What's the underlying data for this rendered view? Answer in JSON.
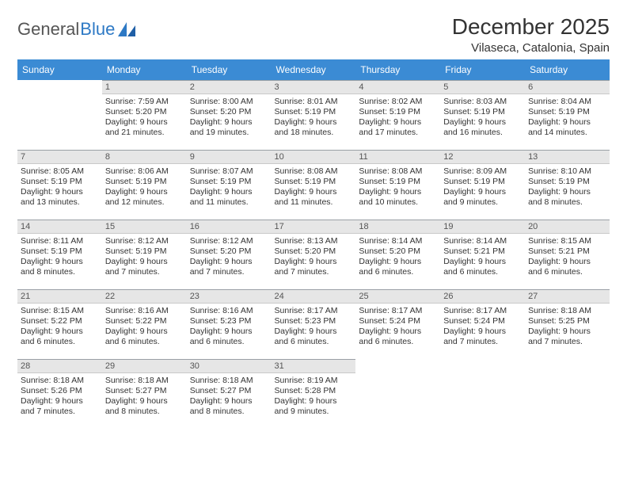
{
  "logo": {
    "text1": "General",
    "text2": "Blue"
  },
  "title": "December 2025",
  "location": "Vilaseca, Catalonia, Spain",
  "header_bg": "#3b8bd4",
  "dayhead_bg": "#e6e6e6",
  "days_of_week": [
    "Sunday",
    "Monday",
    "Tuesday",
    "Wednesday",
    "Thursday",
    "Friday",
    "Saturday"
  ],
  "weeks": [
    [
      {
        "n": "",
        "sunrise": "",
        "sunset": "",
        "daylight": ""
      },
      {
        "n": "1",
        "sunrise": "Sunrise: 7:59 AM",
        "sunset": "Sunset: 5:20 PM",
        "daylight": "Daylight: 9 hours and 21 minutes."
      },
      {
        "n": "2",
        "sunrise": "Sunrise: 8:00 AM",
        "sunset": "Sunset: 5:20 PM",
        "daylight": "Daylight: 9 hours and 19 minutes."
      },
      {
        "n": "3",
        "sunrise": "Sunrise: 8:01 AM",
        "sunset": "Sunset: 5:19 PM",
        "daylight": "Daylight: 9 hours and 18 minutes."
      },
      {
        "n": "4",
        "sunrise": "Sunrise: 8:02 AM",
        "sunset": "Sunset: 5:19 PM",
        "daylight": "Daylight: 9 hours and 17 minutes."
      },
      {
        "n": "5",
        "sunrise": "Sunrise: 8:03 AM",
        "sunset": "Sunset: 5:19 PM",
        "daylight": "Daylight: 9 hours and 16 minutes."
      },
      {
        "n": "6",
        "sunrise": "Sunrise: 8:04 AM",
        "sunset": "Sunset: 5:19 PM",
        "daylight": "Daylight: 9 hours and 14 minutes."
      }
    ],
    [
      {
        "n": "7",
        "sunrise": "Sunrise: 8:05 AM",
        "sunset": "Sunset: 5:19 PM",
        "daylight": "Daylight: 9 hours and 13 minutes."
      },
      {
        "n": "8",
        "sunrise": "Sunrise: 8:06 AM",
        "sunset": "Sunset: 5:19 PM",
        "daylight": "Daylight: 9 hours and 12 minutes."
      },
      {
        "n": "9",
        "sunrise": "Sunrise: 8:07 AM",
        "sunset": "Sunset: 5:19 PM",
        "daylight": "Daylight: 9 hours and 11 minutes."
      },
      {
        "n": "10",
        "sunrise": "Sunrise: 8:08 AM",
        "sunset": "Sunset: 5:19 PM",
        "daylight": "Daylight: 9 hours and 11 minutes."
      },
      {
        "n": "11",
        "sunrise": "Sunrise: 8:08 AM",
        "sunset": "Sunset: 5:19 PM",
        "daylight": "Daylight: 9 hours and 10 minutes."
      },
      {
        "n": "12",
        "sunrise": "Sunrise: 8:09 AM",
        "sunset": "Sunset: 5:19 PM",
        "daylight": "Daylight: 9 hours and 9 minutes."
      },
      {
        "n": "13",
        "sunrise": "Sunrise: 8:10 AM",
        "sunset": "Sunset: 5:19 PM",
        "daylight": "Daylight: 9 hours and 8 minutes."
      }
    ],
    [
      {
        "n": "14",
        "sunrise": "Sunrise: 8:11 AM",
        "sunset": "Sunset: 5:19 PM",
        "daylight": "Daylight: 9 hours and 8 minutes."
      },
      {
        "n": "15",
        "sunrise": "Sunrise: 8:12 AM",
        "sunset": "Sunset: 5:19 PM",
        "daylight": "Daylight: 9 hours and 7 minutes."
      },
      {
        "n": "16",
        "sunrise": "Sunrise: 8:12 AM",
        "sunset": "Sunset: 5:20 PM",
        "daylight": "Daylight: 9 hours and 7 minutes."
      },
      {
        "n": "17",
        "sunrise": "Sunrise: 8:13 AM",
        "sunset": "Sunset: 5:20 PM",
        "daylight": "Daylight: 9 hours and 7 minutes."
      },
      {
        "n": "18",
        "sunrise": "Sunrise: 8:14 AM",
        "sunset": "Sunset: 5:20 PM",
        "daylight": "Daylight: 9 hours and 6 minutes."
      },
      {
        "n": "19",
        "sunrise": "Sunrise: 8:14 AM",
        "sunset": "Sunset: 5:21 PM",
        "daylight": "Daylight: 9 hours and 6 minutes."
      },
      {
        "n": "20",
        "sunrise": "Sunrise: 8:15 AM",
        "sunset": "Sunset: 5:21 PM",
        "daylight": "Daylight: 9 hours and 6 minutes."
      }
    ],
    [
      {
        "n": "21",
        "sunrise": "Sunrise: 8:15 AM",
        "sunset": "Sunset: 5:22 PM",
        "daylight": "Daylight: 9 hours and 6 minutes."
      },
      {
        "n": "22",
        "sunrise": "Sunrise: 8:16 AM",
        "sunset": "Sunset: 5:22 PM",
        "daylight": "Daylight: 9 hours and 6 minutes."
      },
      {
        "n": "23",
        "sunrise": "Sunrise: 8:16 AM",
        "sunset": "Sunset: 5:23 PM",
        "daylight": "Daylight: 9 hours and 6 minutes."
      },
      {
        "n": "24",
        "sunrise": "Sunrise: 8:17 AM",
        "sunset": "Sunset: 5:23 PM",
        "daylight": "Daylight: 9 hours and 6 minutes."
      },
      {
        "n": "25",
        "sunrise": "Sunrise: 8:17 AM",
        "sunset": "Sunset: 5:24 PM",
        "daylight": "Daylight: 9 hours and 6 minutes."
      },
      {
        "n": "26",
        "sunrise": "Sunrise: 8:17 AM",
        "sunset": "Sunset: 5:24 PM",
        "daylight": "Daylight: 9 hours and 7 minutes."
      },
      {
        "n": "27",
        "sunrise": "Sunrise: 8:18 AM",
        "sunset": "Sunset: 5:25 PM",
        "daylight": "Daylight: 9 hours and 7 minutes."
      }
    ],
    [
      {
        "n": "28",
        "sunrise": "Sunrise: 8:18 AM",
        "sunset": "Sunset: 5:26 PM",
        "daylight": "Daylight: 9 hours and 7 minutes."
      },
      {
        "n": "29",
        "sunrise": "Sunrise: 8:18 AM",
        "sunset": "Sunset: 5:27 PM",
        "daylight": "Daylight: 9 hours and 8 minutes."
      },
      {
        "n": "30",
        "sunrise": "Sunrise: 8:18 AM",
        "sunset": "Sunset: 5:27 PM",
        "daylight": "Daylight: 9 hours and 8 minutes."
      },
      {
        "n": "31",
        "sunrise": "Sunrise: 8:19 AM",
        "sunset": "Sunset: 5:28 PM",
        "daylight": "Daylight: 9 hours and 9 minutes."
      },
      {
        "n": "",
        "sunrise": "",
        "sunset": "",
        "daylight": ""
      },
      {
        "n": "",
        "sunrise": "",
        "sunset": "",
        "daylight": ""
      },
      {
        "n": "",
        "sunrise": "",
        "sunset": "",
        "daylight": ""
      }
    ]
  ]
}
